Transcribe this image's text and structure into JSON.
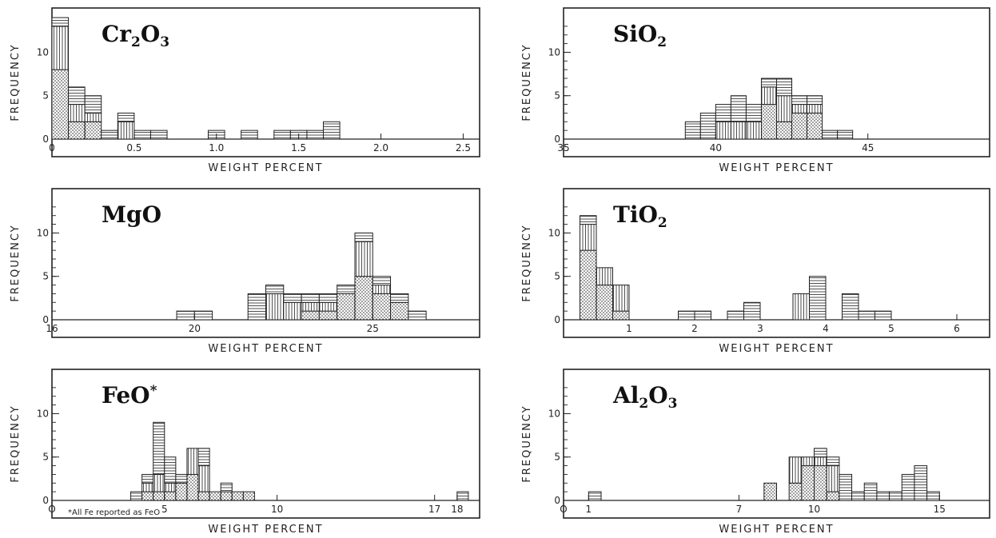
{
  "chart_data": [
    {
      "type": "bar",
      "title": "Cr2O3",
      "title_parts": [
        "Cr",
        "2",
        "O",
        "3"
      ],
      "xlabel": "WEIGHT PERCENT",
      "ylabel": "FREQUENCY",
      "xlim": [
        0,
        2.6
      ],
      "ylim": [
        0,
        14
      ],
      "x_ticks": [
        {
          "v": 0,
          "t": "0"
        },
        {
          "v": 0.5,
          "t": "0.5"
        },
        {
          "v": 1.0,
          "t": "1.0"
        },
        {
          "v": 1.5,
          "t": "1.5"
        },
        {
          "v": 2.0,
          "t": "2.0"
        },
        {
          "v": 2.5,
          "t": "2.5"
        }
      ],
      "y_ticks": [
        {
          "v": 0,
          "t": "0"
        },
        {
          "v": 5,
          "t": "5"
        },
        {
          "v": 10,
          "t": "10"
        }
      ],
      "bin_width": 0.1,
      "stack_patterns": [
        "dots",
        "vertical",
        "horizontal"
      ],
      "bins": [
        {
          "x": 0.0,
          "counts": [
            8,
            5,
            1
          ]
        },
        {
          "x": 0.1,
          "counts": [
            2,
            2,
            2
          ]
        },
        {
          "x": 0.2,
          "counts": [
            2,
            1,
            2
          ]
        },
        {
          "x": 0.3,
          "counts": [
            0,
            0,
            1
          ]
        },
        {
          "x": 0.4,
          "counts": [
            0,
            2,
            1
          ]
        },
        {
          "x": 0.5,
          "counts": [
            0,
            0,
            1
          ]
        },
        {
          "x": 0.6,
          "counts": [
            0,
            0,
            1
          ]
        },
        {
          "x": 0.95,
          "counts": [
            0,
            0,
            1
          ]
        },
        {
          "x": 1.15,
          "counts": [
            0,
            0,
            1
          ]
        },
        {
          "x": 1.35,
          "counts": [
            0,
            0,
            1
          ]
        },
        {
          "x": 1.45,
          "counts": [
            0,
            0,
            1
          ]
        },
        {
          "x": 1.55,
          "counts": [
            0,
            0,
            1
          ]
        },
        {
          "x": 1.65,
          "counts": [
            0,
            0,
            2
          ]
        }
      ]
    },
    {
      "type": "bar",
      "title": "SiO2",
      "title_parts": [
        "SiO",
        "2"
      ],
      "xlabel": "WEIGHT PERCENT",
      "ylabel": "FREQUENCY",
      "xlim": [
        35,
        49
      ],
      "ylim": [
        0,
        14
      ],
      "x_ticks": [
        {
          "v": 35,
          "t": "35"
        },
        {
          "v": 40,
          "t": "40"
        },
        {
          "v": 45,
          "t": "45"
        }
      ],
      "y_ticks": [
        {
          "v": 0,
          "t": "0"
        },
        {
          "v": 5,
          "t": "5"
        },
        {
          "v": 10,
          "t": "10"
        }
      ],
      "bin_width": 0.5,
      "stack_patterns": [
        "dots",
        "vertical",
        "horizontal"
      ],
      "bins": [
        {
          "x": 39.0,
          "counts": [
            0,
            0,
            2
          ]
        },
        {
          "x": 39.5,
          "counts": [
            0,
            0,
            3
          ]
        },
        {
          "x": 40.0,
          "counts": [
            0,
            2,
            2
          ]
        },
        {
          "x": 40.5,
          "counts": [
            0,
            2,
            3
          ]
        },
        {
          "x": 41.0,
          "counts": [
            0,
            2,
            2
          ]
        },
        {
          "x": 41.5,
          "counts": [
            4,
            2,
            1
          ]
        },
        {
          "x": 42.0,
          "counts": [
            2,
            3,
            2
          ]
        },
        {
          "x": 42.5,
          "counts": [
            3,
            1,
            1
          ]
        },
        {
          "x": 43.0,
          "counts": [
            3,
            1,
            1
          ]
        },
        {
          "x": 43.5,
          "counts": [
            0,
            0,
            1
          ]
        },
        {
          "x": 44.0,
          "counts": [
            0,
            0,
            1
          ]
        }
      ]
    },
    {
      "type": "bar",
      "title": "MgO",
      "title_parts": [
        "MgO"
      ],
      "xlabel": "WEIGHT PERCENT",
      "ylabel": "FREQUENCY",
      "xlim": [
        16,
        28
      ],
      "ylim": [
        0,
        14
      ],
      "x_ticks": [
        {
          "v": 16,
          "t": "16"
        },
        {
          "v": 20,
          "t": "20"
        },
        {
          "v": 25,
          "t": "25"
        }
      ],
      "y_ticks": [
        {
          "v": 0,
          "t": "0"
        },
        {
          "v": 5,
          "t": "5"
        },
        {
          "v": 10,
          "t": "10"
        }
      ],
      "bin_width": 0.5,
      "stack_patterns": [
        "dots",
        "vertical",
        "horizontal"
      ],
      "bins": [
        {
          "x": 19.5,
          "counts": [
            0,
            0,
            1
          ]
        },
        {
          "x": 20.0,
          "counts": [
            0,
            0,
            1
          ]
        },
        {
          "x": 21.5,
          "counts": [
            0,
            0,
            3
          ]
        },
        {
          "x": 22.0,
          "counts": [
            0,
            3,
            1
          ]
        },
        {
          "x": 22.5,
          "counts": [
            0,
            2,
            1
          ]
        },
        {
          "x": 23.0,
          "counts": [
            1,
            1,
            1
          ]
        },
        {
          "x": 23.5,
          "counts": [
            1,
            1,
            1
          ]
        },
        {
          "x": 24.0,
          "counts": [
            3,
            0,
            1
          ]
        },
        {
          "x": 24.5,
          "counts": [
            5,
            4,
            1
          ]
        },
        {
          "x": 25.0,
          "counts": [
            3,
            1,
            1
          ]
        },
        {
          "x": 25.5,
          "counts": [
            2,
            0,
            1
          ]
        },
        {
          "x": 26.0,
          "counts": [
            0,
            0,
            1
          ]
        }
      ]
    },
    {
      "type": "bar",
      "title": "TiO2",
      "title_parts": [
        "TiO",
        "2"
      ],
      "xlabel": "WEIGHT PERCENT",
      "ylabel": "FREQUENCY",
      "xlim": [
        0,
        6.5
      ],
      "ylim": [
        0,
        14
      ],
      "x_ticks": [
        {
          "v": 1,
          "t": "1"
        },
        {
          "v": 2,
          "t": "2"
        },
        {
          "v": 3,
          "t": "3"
        },
        {
          "v": 4,
          "t": "4"
        },
        {
          "v": 5,
          "t": "5"
        },
        {
          "v": 6,
          "t": "6"
        }
      ],
      "y_ticks": [
        {
          "v": 0,
          "t": "0"
        },
        {
          "v": 5,
          "t": "5"
        },
        {
          "v": 10,
          "t": "10"
        }
      ],
      "bin_width": 0.25,
      "stack_patterns": [
        "dots",
        "vertical",
        "horizontal"
      ],
      "bins": [
        {
          "x": 0.25,
          "counts": [
            8,
            3,
            1
          ]
        },
        {
          "x": 0.5,
          "counts": [
            4,
            2,
            0
          ]
        },
        {
          "x": 0.75,
          "counts": [
            1,
            3,
            0
          ]
        },
        {
          "x": 1.75,
          "counts": [
            0,
            0,
            1
          ]
        },
        {
          "x": 2.0,
          "counts": [
            0,
            0,
            1
          ]
        },
        {
          "x": 2.5,
          "counts": [
            0,
            0,
            1
          ]
        },
        {
          "x": 2.75,
          "counts": [
            0,
            0,
            2
          ]
        },
        {
          "x": 3.5,
          "counts": [
            0,
            3,
            0
          ]
        },
        {
          "x": 3.75,
          "counts": [
            0,
            0,
            5
          ]
        },
        {
          "x": 4.25,
          "counts": [
            0,
            0,
            3
          ]
        },
        {
          "x": 4.5,
          "counts": [
            0,
            0,
            1
          ]
        },
        {
          "x": 4.75,
          "counts": [
            0,
            0,
            1
          ]
        }
      ]
    },
    {
      "type": "bar",
      "title": "FeO*",
      "title_parts": [
        "FeO",
        "*"
      ],
      "footnote": "*All Fe reported as FeO",
      "xlabel": "WEIGHT PERCENT",
      "ylabel": "FREQUENCY",
      "xlim": [
        0,
        19
      ],
      "ylim": [
        0,
        14
      ],
      "x_ticks": [
        {
          "v": 0,
          "t": "O"
        },
        {
          "v": 5,
          "t": "5"
        },
        {
          "v": 10,
          "t": "10"
        },
        {
          "v": 17,
          "t": "17"
        },
        {
          "v": 18,
          "t": "18"
        }
      ],
      "y_ticks": [
        {
          "v": 0,
          "t": "0"
        },
        {
          "v": 5,
          "t": "5"
        },
        {
          "v": 10,
          "t": "10"
        }
      ],
      "bin_width": 0.5,
      "stack_patterns": [
        "dots",
        "vertical",
        "horizontal"
      ],
      "bins": [
        {
          "x": 3.5,
          "counts": [
            0,
            0,
            1
          ]
        },
        {
          "x": 4.0,
          "counts": [
            1,
            1,
            1
          ]
        },
        {
          "x": 4.5,
          "counts": [
            1,
            2,
            6
          ]
        },
        {
          "x": 5.0,
          "counts": [
            1,
            1,
            3
          ]
        },
        {
          "x": 5.5,
          "counts": [
            2,
            0,
            1
          ]
        },
        {
          "x": 6.0,
          "counts": [
            3,
            3,
            0
          ]
        },
        {
          "x": 6.5,
          "counts": [
            1,
            3,
            2
          ]
        },
        {
          "x": 7.0,
          "counts": [
            1,
            0,
            0
          ]
        },
        {
          "x": 7.5,
          "counts": [
            1,
            0,
            1
          ]
        },
        {
          "x": 8.0,
          "counts": [
            1,
            0,
            0
          ]
        },
        {
          "x": 8.5,
          "counts": [
            1,
            0,
            0
          ]
        },
        {
          "x": 18.0,
          "counts": [
            0,
            0,
            1
          ]
        }
      ]
    },
    {
      "type": "bar",
      "title": "Al2O3",
      "title_parts": [
        "Al",
        "2",
        "O",
        "3"
      ],
      "xlabel": "WEIGHT PERCENT",
      "ylabel": "FREQUENCY",
      "xlim": [
        0,
        17
      ],
      "ylim": [
        0,
        14
      ],
      "x_ticks": [
        {
          "v": 0,
          "t": "O"
        },
        {
          "v": 1,
          "t": "1"
        },
        {
          "v": 7,
          "t": "7"
        },
        {
          "v": 10,
          "t": "10"
        },
        {
          "v": 15,
          "t": "15"
        }
      ],
      "y_ticks": [
        {
          "v": 0,
          "t": "0"
        },
        {
          "v": 5,
          "t": "5"
        },
        {
          "v": 10,
          "t": "10"
        }
      ],
      "bin_width": 0.5,
      "stack_patterns": [
        "dots",
        "vertical",
        "horizontal"
      ],
      "bins": [
        {
          "x": 1.0,
          "counts": [
            0,
            0,
            1
          ]
        },
        {
          "x": 8.0,
          "counts": [
            2,
            0,
            0
          ]
        },
        {
          "x": 9.0,
          "counts": [
            2,
            3,
            0
          ]
        },
        {
          "x": 9.5,
          "counts": [
            4,
            1,
            0
          ]
        },
        {
          "x": 10.0,
          "counts": [
            4,
            1,
            1
          ]
        },
        {
          "x": 10.5,
          "counts": [
            1,
            3,
            1
          ]
        },
        {
          "x": 11.0,
          "counts": [
            0,
            0,
            3
          ]
        },
        {
          "x": 11.5,
          "counts": [
            0,
            0,
            1
          ]
        },
        {
          "x": 12.0,
          "counts": [
            0,
            0,
            2
          ]
        },
        {
          "x": 12.5,
          "counts": [
            0,
            0,
            1
          ]
        },
        {
          "x": 13.0,
          "counts": [
            0,
            0,
            1
          ]
        },
        {
          "x": 13.5,
          "counts": [
            0,
            0,
            3
          ]
        },
        {
          "x": 14.0,
          "counts": [
            0,
            0,
            4
          ]
        },
        {
          "x": 14.5,
          "counts": [
            0,
            0,
            1
          ]
        }
      ]
    }
  ]
}
